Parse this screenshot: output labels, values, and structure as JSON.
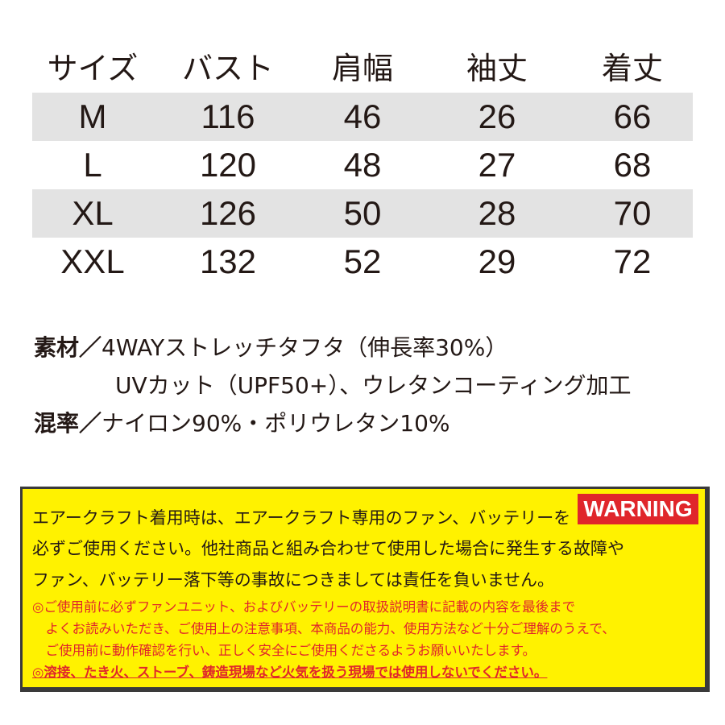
{
  "table": {
    "headers": [
      "サイズ",
      "バスト",
      "肩幅",
      "袖丈",
      "着丈"
    ],
    "rows": [
      [
        "M",
        "116",
        "46",
        "26",
        "66"
      ],
      [
        "L",
        "120",
        "48",
        "27",
        "68"
      ],
      [
        "XL",
        "126",
        "50",
        "28",
        "70"
      ],
      [
        "XXL",
        "132",
        "52",
        "29",
        "72"
      ]
    ]
  },
  "materials": {
    "material_label": "素材／",
    "material_line1": "4WAYストレッチタフタ（伸長率30%）",
    "material_line2": "UVカット（UPF50+）、ウレタンコーティング加工",
    "blend_label": "混率／",
    "blend_text": "ナイロン90%・ポリウレタン10%"
  },
  "warning": {
    "badge": "WARNING",
    "lines": [
      "エアークラフト着用時は、エアークラフト専用のファン、バッテリーを",
      "必ずご使用ください。他社商品と組み合わせて使用した場合に発生する故障や",
      "ファン、バッテリー落下等の事故につきましては責任を負いません。"
    ],
    "notes": [
      "◎ご使用前に必ずファンユニット、およびバッテリーの取扱説明書に記載の内容を最後まで",
      "　よくお読みいただき、ご使用上の注意事項、本商品の能力、使用方法など十分ご理解のうえで、",
      "　ご使用前に動作確認を行い、正しく安全にご使用くださるようお願いいたします。",
      "◎溶接、たき火、ストーブ、鋳造現場など火気を扱う現場では使用しないでください。"
    ],
    "colors": {
      "background": "#fff200",
      "accent": "#e0262b"
    }
  }
}
